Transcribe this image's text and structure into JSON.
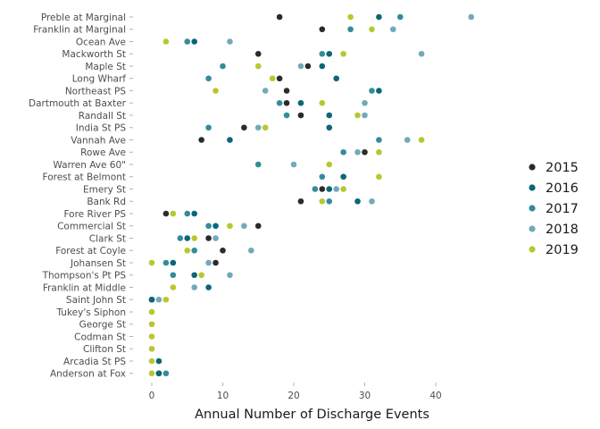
{
  "chart_data": {
    "type": "scatter",
    "title": "",
    "xlabel": "Annual Number of Discharge Events",
    "ylabel": "",
    "xlim": [
      0,
      45
    ],
    "xticks": [
      0,
      10,
      20,
      30,
      40
    ],
    "grid": false,
    "legend_position": "right",
    "categories": [
      "Preble at Marginal",
      "Franklin at Marginal",
      "Ocean Ave",
      "Mackworth St",
      "Maple St",
      "Long Wharf",
      "Northeast PS",
      "Dartmouth at Baxter",
      "Randall St",
      "India St PS",
      "Vannah Ave",
      "Rowe Ave",
      "Warren Ave 60\"",
      "Forest at Belmont",
      "Emery St",
      "Bank Rd",
      "Fore River PS",
      "Commercial St",
      "Clark St",
      "Forest at Coyle",
      "Johansen St",
      "Thompson's Pt PS",
      "Franklin at Middle",
      "Saint John St",
      "Tukey's Siphon",
      "George St",
      "Codman St",
      "Clifton St",
      "Arcadia St PS",
      "Anderson at Fox"
    ],
    "series": [
      {
        "name": "2015",
        "color": "#2b2b2b",
        "values": [
          18,
          24,
          null,
          15,
          22,
          18,
          19,
          19,
          21,
          13,
          7,
          30,
          null,
          null,
          24,
          21,
          2,
          15,
          8,
          10,
          9,
          null,
          null,
          0,
          null,
          null,
          null,
          null,
          null,
          1
        ]
      },
      {
        "name": "2016",
        "color": "#0b6677",
        "values": [
          32,
          null,
          6,
          25,
          24,
          26,
          32,
          21,
          25,
          25,
          11,
          null,
          null,
          27,
          25,
          29,
          6,
          9,
          5,
          null,
          3,
          6,
          8,
          0,
          null,
          null,
          null,
          null,
          1,
          1
        ]
      },
      {
        "name": "2017",
        "color": "#338c9c",
        "values": [
          35,
          28,
          5,
          24,
          10,
          8,
          31,
          18,
          19,
          8,
          32,
          27,
          15,
          24,
          23,
          25,
          5,
          8,
          4,
          6,
          2,
          3,
          null,
          null,
          null,
          null,
          null,
          null,
          null,
          2
        ]
      },
      {
        "name": "2018",
        "color": "#72a9bc",
        "values": [
          45,
          34,
          11,
          38,
          21,
          null,
          16,
          30,
          30,
          15,
          36,
          29,
          20,
          null,
          26,
          31,
          null,
          13,
          9,
          14,
          8,
          11,
          6,
          1,
          null,
          null,
          null,
          null,
          null,
          null
        ]
      },
      {
        "name": "2019",
        "color": "#b9c72f",
        "values": [
          28,
          31,
          2,
          27,
          15,
          17,
          9,
          24,
          29,
          16,
          38,
          32,
          25,
          32,
          27,
          24,
          3,
          11,
          6,
          5,
          0,
          7,
          3,
          2,
          0,
          0,
          0,
          0,
          0,
          0
        ]
      }
    ]
  }
}
